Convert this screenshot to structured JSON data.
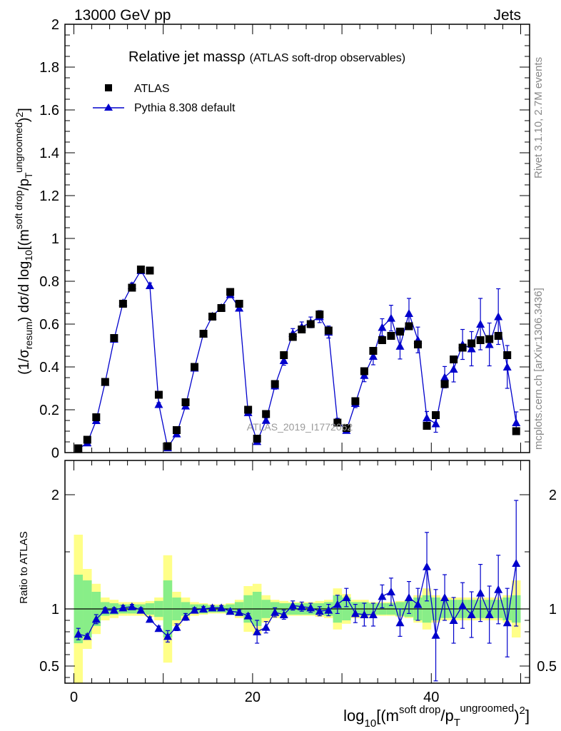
{
  "header": {
    "left": "13000 GeV pp",
    "right": "Jets"
  },
  "side_labels": {
    "upper": "Rivet 3.1.10,  2.7M events",
    "lower": "mcplots.cern.ch [arXiv:1306.3436]"
  },
  "chart_data": {
    "type": "scatter",
    "title": "Relative jet massρ",
    "subtitle": "(ATLAS soft-drop observables)",
    "watermark": "ATLAS_2019_I1772062",
    "ylabel": "(1/σ_resum) dσ/d log10[(m^{soft drop}/p_T^{ungroomed})^2]",
    "xlabel": "log10[(m^{soft drop}/p_T^{ungroomed})^2]",
    "ratio_ylabel": "Ratio to ATLAS",
    "xlim": [
      -1,
      51
    ],
    "ylim": [
      0,
      2
    ],
    "ratio_ylim": [
      0.35,
      2.3
    ],
    "x_ticks": [
      "0",
      "20",
      "40"
    ],
    "y_ticks": [
      "0",
      "0.2",
      "0.4",
      "0.6",
      "0.8",
      "1",
      "1.2",
      "1.4",
      "1.6",
      "1.8",
      "2"
    ],
    "ratio_y_ticks": [
      "0.5",
      "1",
      "2"
    ],
    "legend_position": "top-left",
    "colors": {
      "data": "#000000",
      "mc": "#0000cc",
      "band_inner": "#88ee88",
      "band_outer": "#ffff88"
    },
    "x": [
      0.5,
      1.5,
      2.5,
      3.5,
      4.5,
      5.5,
      6.5,
      7.5,
      8.5,
      9.5,
      10.5,
      11.5,
      12.5,
      13.5,
      14.5,
      15.5,
      16.5,
      17.5,
      18.5,
      19.5,
      20.5,
      21.5,
      22.5,
      23.5,
      24.5,
      25.5,
      26.5,
      27.5,
      28.5,
      29.5,
      30.5,
      31.5,
      32.5,
      33.5,
      34.5,
      35.5,
      36.5,
      37.5,
      38.5,
      39.5,
      40.5,
      41.5,
      42.5,
      43.5,
      44.5,
      45.5,
      46.5,
      47.5,
      48.5,
      49.5
    ],
    "series": [
      {
        "name": "ATLAS",
        "values": [
          0.02,
          0.06,
          0.165,
          0.33,
          0.535,
          0.695,
          0.77,
          0.855,
          0.85,
          0.27,
          0.03,
          0.105,
          0.235,
          0.4,
          0.555,
          0.635,
          0.675,
          0.75,
          0.695,
          0.2,
          0.065,
          0.18,
          0.32,
          0.455,
          0.54,
          0.575,
          0.6,
          0.645,
          0.57,
          0.14,
          0.115,
          0.24,
          0.38,
          0.475,
          0.525,
          0.545,
          0.565,
          0.59,
          0.505,
          0.125,
          0.175,
          0.32,
          0.435,
          0.49,
          0.51,
          0.525,
          0.53,
          0.545,
          0.455,
          0.1
        ]
      },
      {
        "name": "Pythia 8.308 default",
        "values": [
          0.016,
          0.046,
          0.15,
          0.328,
          0.53,
          0.7,
          0.78,
          0.85,
          0.78,
          0.225,
          0.023,
          0.088,
          0.218,
          0.395,
          0.555,
          0.638,
          0.678,
          0.738,
          0.675,
          0.187,
          0.052,
          0.151,
          0.312,
          0.43,
          0.557,
          0.587,
          0.608,
          0.635,
          0.563,
          0.145,
          0.104,
          0.23,
          0.361,
          0.45,
          0.585,
          0.628,
          0.497,
          0.65,
          0.526,
          0.162,
          0.135,
          0.352,
          0.39,
          0.505,
          0.485,
          0.6,
          0.505,
          0.635,
          0.4,
          0.14
        ],
        "errors": [
          0.002,
          0.003,
          0.006,
          0.008,
          0.01,
          0.01,
          0.012,
          0.012,
          0.012,
          0.008,
          0.003,
          0.005,
          0.007,
          0.009,
          0.01,
          0.011,
          0.012,
          0.012,
          0.012,
          0.007,
          0.009,
          0.01,
          0.016,
          0.022,
          0.022,
          0.023,
          0.025,
          0.028,
          0.028,
          0.015,
          0.012,
          0.02,
          0.03,
          0.04,
          0.04,
          0.06,
          0.06,
          0.07,
          0.06,
          0.03,
          0.04,
          0.05,
          0.06,
          0.07,
          0.08,
          0.12,
          0.1,
          0.13,
          0.1,
          0.05
        ]
      }
    ],
    "ratio": [
      0.78,
      0.76,
      0.91,
      0.99,
      0.99,
      1.01,
      1.02,
      0.99,
      0.91,
      0.83,
      0.76,
      0.84,
      0.93,
      0.99,
      1.0,
      1.01,
      1.01,
      0.98,
      0.97,
      0.94,
      0.8,
      0.84,
      0.97,
      0.95,
      1.03,
      1.02,
      1.01,
      0.98,
      0.99,
      1.04,
      1.1,
      0.96,
      0.95,
      0.95,
      1.11,
      1.15,
      0.88,
      1.1,
      1.04,
      1.37,
      0.77,
      1.1,
      0.9,
      1.03,
      0.95,
      1.14,
      0.95,
      1.17,
      0.88,
      1.4
    ],
    "ratio_errors": [
      0.05,
      0.02,
      0.04,
      0.02,
      0.02,
      0.02,
      0.02,
      0.02,
      0.02,
      0.02,
      0.05,
      0.03,
      0.03,
      0.02,
      0.02,
      0.02,
      0.02,
      0.02,
      0.02,
      0.02,
      0.1,
      0.05,
      0.04,
      0.04,
      0.04,
      0.04,
      0.04,
      0.04,
      0.05,
      0.08,
      0.08,
      0.08,
      0.1,
      0.1,
      0.1,
      0.12,
      0.12,
      0.14,
      0.14,
      0.3,
      0.4,
      0.2,
      0.2,
      0.2,
      0.2,
      0.25,
      0.25,
      0.3,
      0.3,
      0.55
    ],
    "band_inner": [
      0.3,
      0.25,
      0.15,
      0.06,
      0.05,
      0.04,
      0.04,
      0.04,
      0.05,
      0.07,
      0.25,
      0.1,
      0.06,
      0.04,
      0.04,
      0.03,
      0.03,
      0.04,
      0.06,
      0.12,
      0.15,
      0.08,
      0.06,
      0.05,
      0.05,
      0.05,
      0.05,
      0.05,
      0.06,
      0.12,
      0.1,
      0.06,
      0.06,
      0.05,
      0.05,
      0.05,
      0.06,
      0.07,
      0.1,
      0.12,
      0.1,
      0.08,
      0.08,
      0.08,
      0.08,
      0.08,
      0.08,
      0.08,
      0.1,
      0.12
    ],
    "band_outer": [
      0.65,
      0.35,
      0.22,
      0.1,
      0.08,
      0.06,
      0.06,
      0.06,
      0.07,
      0.1,
      0.47,
      0.15,
      0.1,
      0.06,
      0.05,
      0.04,
      0.04,
      0.05,
      0.08,
      0.2,
      0.22,
      0.12,
      0.08,
      0.07,
      0.06,
      0.06,
      0.06,
      0.07,
      0.08,
      0.18,
      0.13,
      0.08,
      0.08,
      0.06,
      0.06,
      0.06,
      0.07,
      0.08,
      0.12,
      0.18,
      0.12,
      0.1,
      0.1,
      0.1,
      0.1,
      0.1,
      0.1,
      0.1,
      0.12,
      0.25
    ]
  }
}
